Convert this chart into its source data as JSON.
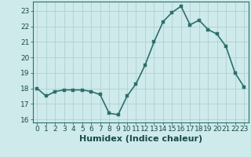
{
  "x": [
    0,
    1,
    2,
    3,
    4,
    5,
    6,
    7,
    8,
    9,
    10,
    11,
    12,
    13,
    14,
    15,
    16,
    17,
    18,
    19,
    20,
    21,
    22,
    23
  ],
  "y": [
    18.0,
    17.5,
    17.8,
    17.9,
    17.9,
    17.9,
    17.8,
    17.6,
    16.4,
    16.3,
    17.5,
    18.3,
    19.5,
    21.0,
    22.3,
    22.9,
    23.3,
    22.1,
    22.4,
    21.8,
    21.5,
    20.7,
    19.0,
    18.1
  ],
  "xlabel": "Humidex (Indice chaleur)",
  "xlim": [
    -0.5,
    23.5
  ],
  "ylim": [
    15.8,
    23.6
  ],
  "yticks": [
    16,
    17,
    18,
    19,
    20,
    21,
    22,
    23
  ],
  "xticks": [
    0,
    1,
    2,
    3,
    4,
    5,
    6,
    7,
    8,
    9,
    10,
    11,
    12,
    13,
    14,
    15,
    16,
    17,
    18,
    19,
    20,
    21,
    22,
    23
  ],
  "line_color": "#2d6e6e",
  "marker_color": "#2d6e6e",
  "bg_color": "#ceeaea",
  "grid_color": "#b0d0d0",
  "xlabel_fontsize": 8,
  "tick_fontsize": 6.5,
  "line_width": 1.2,
  "marker_size": 2.5
}
